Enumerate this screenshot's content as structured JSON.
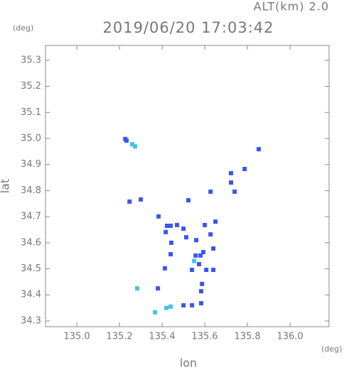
{
  "chart_data": {
    "type": "scatter",
    "title": "2019/06/20 17:03:42",
    "subtitle": "ALT(km) 2.0",
    "y_unit": "(deg)",
    "x_unit": "(deg)",
    "ylabel": "lat",
    "xlabel": "lon",
    "xlim": [
      134.853,
      136.183
    ],
    "ylim": [
      34.278,
      35.357
    ],
    "xticks": [
      {
        "value": 135,
        "label": "135.0"
      },
      135.2,
      135.4,
      135.6,
      135.8,
      {
        "value": 136,
        "label": "136.0"
      }
    ],
    "yticks": [
      34.3,
      34.4,
      34.5,
      34.6,
      34.7,
      34.8,
      34.9,
      {
        "value": 35,
        "label": "35.0"
      },
      35.1,
      35.2,
      35.3
    ],
    "series": [
      {
        "color": "#3a56f0",
        "x": [
          135.227,
          135.233,
          135.247,
          135.3,
          135.853,
          135.787,
          135.723,
          135.723,
          135.74,
          135.627,
          135.523,
          135.383,
          135.417,
          135.423,
          135.44,
          135.443,
          135.44,
          135.413,
          135.5,
          135.513,
          135.56,
          135.65,
          135.627,
          135.593,
          135.557,
          135.573,
          135.54,
          135.607,
          135.58,
          135.64,
          135.64,
          135.587,
          135.583,
          135.38,
          135.5,
          135.54,
          135.583,
          135.47,
          135.6
        ],
        "y": [
          34.998,
          34.992,
          34.758,
          34.766,
          34.959,
          34.883,
          34.867,
          34.831,
          34.796,
          34.796,
          34.763,
          34.701,
          34.641,
          34.665,
          34.665,
          34.6,
          34.556,
          34.502,
          34.654,
          34.621,
          34.61,
          34.681,
          34.632,
          34.564,
          34.551,
          34.518,
          34.496,
          34.496,
          34.551,
          34.578,
          34.496,
          34.442,
          34.414,
          34.425,
          34.36,
          34.36,
          34.368,
          34.668,
          34.668
        ]
      },
      {
        "color": "#3fc4e6",
        "x": [
          135.26,
          135.273,
          135.283,
          135.367,
          135.44,
          135.42,
          135.55
        ],
        "y": [
          34.978,
          34.97,
          34.425,
          34.333,
          34.355,
          34.35,
          34.53
        ]
      }
    ]
  }
}
